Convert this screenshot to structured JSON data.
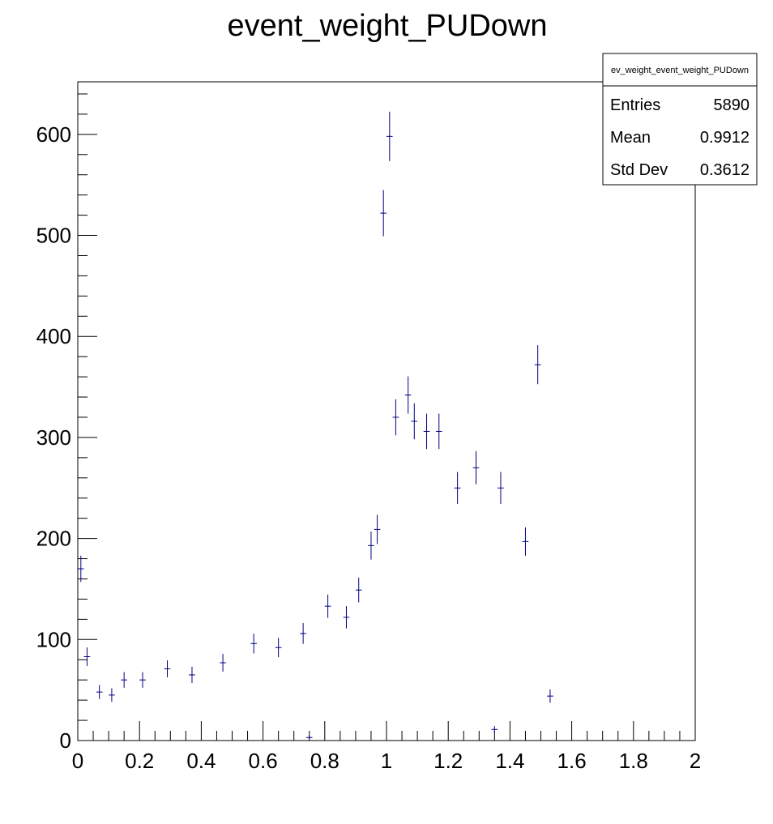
{
  "chart_data": {
    "type": "scatter",
    "title": "event_weight_PUDown",
    "xlabel": "",
    "ylabel": "",
    "xlim": [
      0,
      2
    ],
    "ylim": [
      0,
      652
    ],
    "x_ticks": [
      0,
      0.2,
      0.4,
      0.6,
      0.8,
      1,
      1.2,
      1.4,
      1.6,
      1.8,
      2
    ],
    "x_tick_labels": [
      "0",
      "0.2",
      "0.4",
      "0.6",
      "0.8",
      "1",
      "1.2",
      "1.4",
      "1.6",
      "1.8",
      "2"
    ],
    "y_ticks": [
      0,
      100,
      200,
      300,
      400,
      500,
      600
    ],
    "y_tick_labels": [
      "0",
      "100",
      "200",
      "300",
      "400",
      "500",
      "600"
    ],
    "grid": false,
    "legend": "none",
    "marker_color": "#000080",
    "bin_halfwidth": 0.01,
    "points": [
      {
        "x": 0.01,
        "y": 170
      },
      {
        "x": 0.03,
        "y": 83
      },
      {
        "x": 0.07,
        "y": 48
      },
      {
        "x": 0.11,
        "y": 45
      },
      {
        "x": 0.15,
        "y": 60
      },
      {
        "x": 0.21,
        "y": 60
      },
      {
        "x": 0.29,
        "y": 71
      },
      {
        "x": 0.37,
        "y": 65
      },
      {
        "x": 0.47,
        "y": 77
      },
      {
        "x": 0.57,
        "y": 96
      },
      {
        "x": 0.65,
        "y": 92
      },
      {
        "x": 0.73,
        "y": 106
      },
      {
        "x": 0.75,
        "y": 3
      },
      {
        "x": 0.81,
        "y": 133
      },
      {
        "x": 0.87,
        "y": 122
      },
      {
        "x": 0.91,
        "y": 149
      },
      {
        "x": 0.95,
        "y": 193
      },
      {
        "x": 0.97,
        "y": 209
      },
      {
        "x": 0.99,
        "y": 522
      },
      {
        "x": 1.01,
        "y": 598
      },
      {
        "x": 1.03,
        "y": 320
      },
      {
        "x": 1.07,
        "y": 342
      },
      {
        "x": 1.09,
        "y": 316
      },
      {
        "x": 1.13,
        "y": 306
      },
      {
        "x": 1.17,
        "y": 306
      },
      {
        "x": 1.23,
        "y": 250
      },
      {
        "x": 1.29,
        "y": 270
      },
      {
        "x": 1.35,
        "y": 11
      },
      {
        "x": 1.37,
        "y": 250
      },
      {
        "x": 1.45,
        "y": 197
      },
      {
        "x": 1.49,
        "y": 372
      },
      {
        "x": 1.53,
        "y": 44
      }
    ]
  },
  "stats_box": {
    "name": "ev_weight_event_weight_PUDown",
    "rows": [
      {
        "label": "Entries",
        "value": "5890"
      },
      {
        "label": "Mean",
        "value": "0.9912"
      },
      {
        "label": "Std Dev",
        "value": "0.3612"
      }
    ]
  }
}
